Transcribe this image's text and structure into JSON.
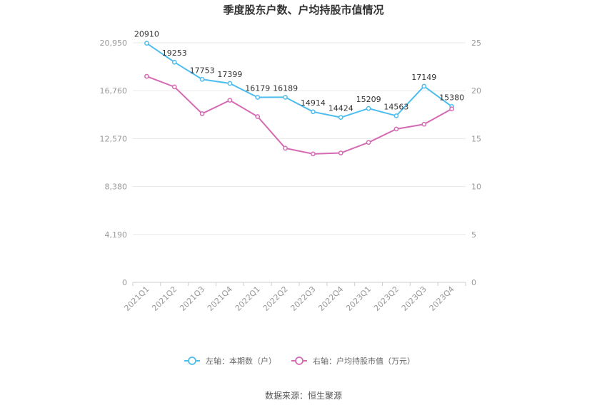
{
  "title": "季度股东户数、户均持股市值情况",
  "source": "数据来源：恒生聚源",
  "chart_data": {
    "type": "line",
    "categories": [
      "2021Q1",
      "2021Q2",
      "2021Q3",
      "2021Q4",
      "2022Q1",
      "2022Q2",
      "2022Q3",
      "2022Q4",
      "2023Q1",
      "2023Q2",
      "2023Q3",
      "2023Q4"
    ],
    "series": [
      {
        "name": "左轴：本期数（户）",
        "axis": "left",
        "color": "#4dbdf0",
        "values": [
          20910,
          19253,
          17753,
          17399,
          16179,
          16189,
          14914,
          14424,
          15209,
          14563,
          17149,
          15380
        ],
        "data_labels": [
          "20910",
          "19253",
          "17753",
          "17399",
          "16179",
          "16189",
          "14914",
          "14424",
          "15209",
          "14563",
          "17149",
          "15380"
        ]
      },
      {
        "name": "右轴：户均持股市值（万元）",
        "axis": "right",
        "color": "#d66ab2",
        "values": [
          21.5,
          20.4,
          17.6,
          19.0,
          17.3,
          14.0,
          13.4,
          13.5,
          14.6,
          16.0,
          16.5,
          18.1
        ]
      }
    ],
    "left_axis": {
      "ticks": [
        "0",
        "4,190",
        "8,380",
        "12,570",
        "16,760",
        "20,950"
      ],
      "ylim": [
        0,
        20950
      ]
    },
    "right_axis": {
      "ticks": [
        "0",
        "5",
        "10",
        "15",
        "20",
        "25"
      ],
      "ylim": [
        0,
        25
      ]
    },
    "grid": true,
    "legend_position": "bottom"
  }
}
